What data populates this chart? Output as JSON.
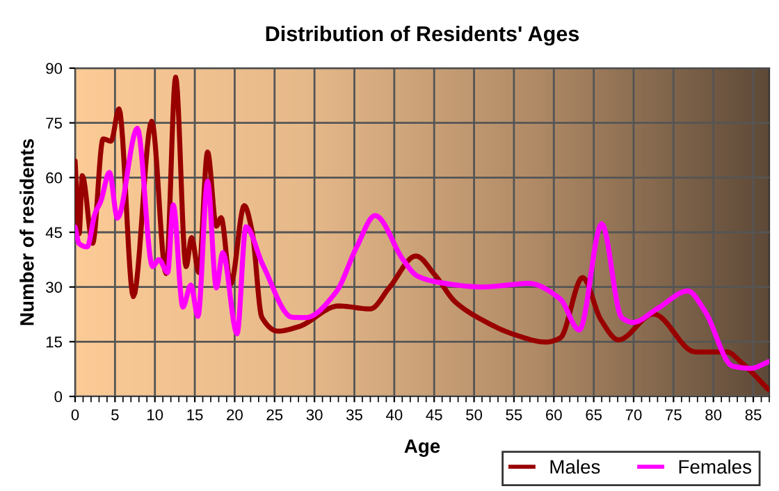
{
  "chart_data": {
    "type": "line",
    "title": "Distribution of Residents' Ages",
    "xlabel": "Age",
    "ylabel": "Number of residents",
    "xlim": [
      0,
      87
    ],
    "xticks": [
      0,
      5,
      10,
      15,
      20,
      25,
      30,
      35,
      40,
      45,
      50,
      55,
      60,
      65,
      70,
      75,
      80,
      85
    ],
    "ylim": [
      0,
      90
    ],
    "yticks": [
      0,
      15,
      30,
      45,
      60,
      75,
      90
    ],
    "grid": true,
    "legend": "bottom right",
    "marker": "none",
    "line_style": "solid",
    "series": [
      {
        "name": "Males",
        "color": "#990000",
        "x": [
          0,
          0.5,
          0.9,
          2.2,
          3.5,
          4.5,
          5.5,
          7.3,
          9.6,
          11.4,
          12.6,
          13.9,
          14.6,
          15.5,
          16.6,
          17.7,
          18.3,
          19.5,
          21.2,
          22.2,
          23.4,
          25.4,
          28,
          33,
          37,
          39.4,
          42.7,
          45.2,
          47.6,
          51,
          55,
          59,
          60.8,
          63.6,
          65.9,
          68.1,
          72.5,
          77.7,
          81.7,
          83.4,
          86.9
        ],
        "values": [
          64.5,
          44.6,
          60.5,
          42,
          70.6,
          70,
          78.8,
          27.4,
          75.4,
          33.7,
          87.5,
          35.6,
          43.5,
          34,
          67,
          46.7,
          49,
          30.8,
          52.3,
          45,
          21.7,
          17.9,
          19.1,
          24.8,
          24,
          29.9,
          38.5,
          33,
          26,
          21,
          17,
          14.9,
          16,
          32.6,
          21,
          15.5,
          22.6,
          12.2,
          12.2,
          9.5,
          1.9
        ]
      },
      {
        "name": "Females",
        "color": "#ff00ff",
        "x": [
          0,
          0.5,
          1.5,
          2.5,
          3.2,
          4.3,
          5.3,
          7.8,
          9.7,
          10.5,
          11.6,
          12.3,
          13.5,
          14.5,
          15.4,
          16.6,
          17.7,
          18.5,
          20.3,
          21.4,
          23.5,
          27.2,
          28.9,
          32.7,
          35.3,
          37.6,
          41.1,
          42.9,
          46.3,
          51,
          55,
          56.8,
          60.8,
          63.2,
          66,
          68.5,
          69.9,
          73,
          76.8,
          78.9,
          82.4,
          84.7,
          86.9
        ],
        "values": [
          46.4,
          41.9,
          41,
          50.2,
          53.4,
          61.4,
          48.9,
          73.5,
          35.6,
          37.5,
          34,
          52.5,
          24.5,
          30.5,
          22,
          59,
          29.8,
          39.4,
          17.2,
          46.5,
          36.2,
          21.7,
          21.6,
          28.6,
          41,
          49.6,
          37.5,
          33,
          31,
          30,
          30.7,
          31,
          26.7,
          18.2,
          47.3,
          21.6,
          20.3,
          24.1,
          28.9,
          23.5,
          8.3,
          7.7,
          9.5
        ]
      }
    ]
  }
}
